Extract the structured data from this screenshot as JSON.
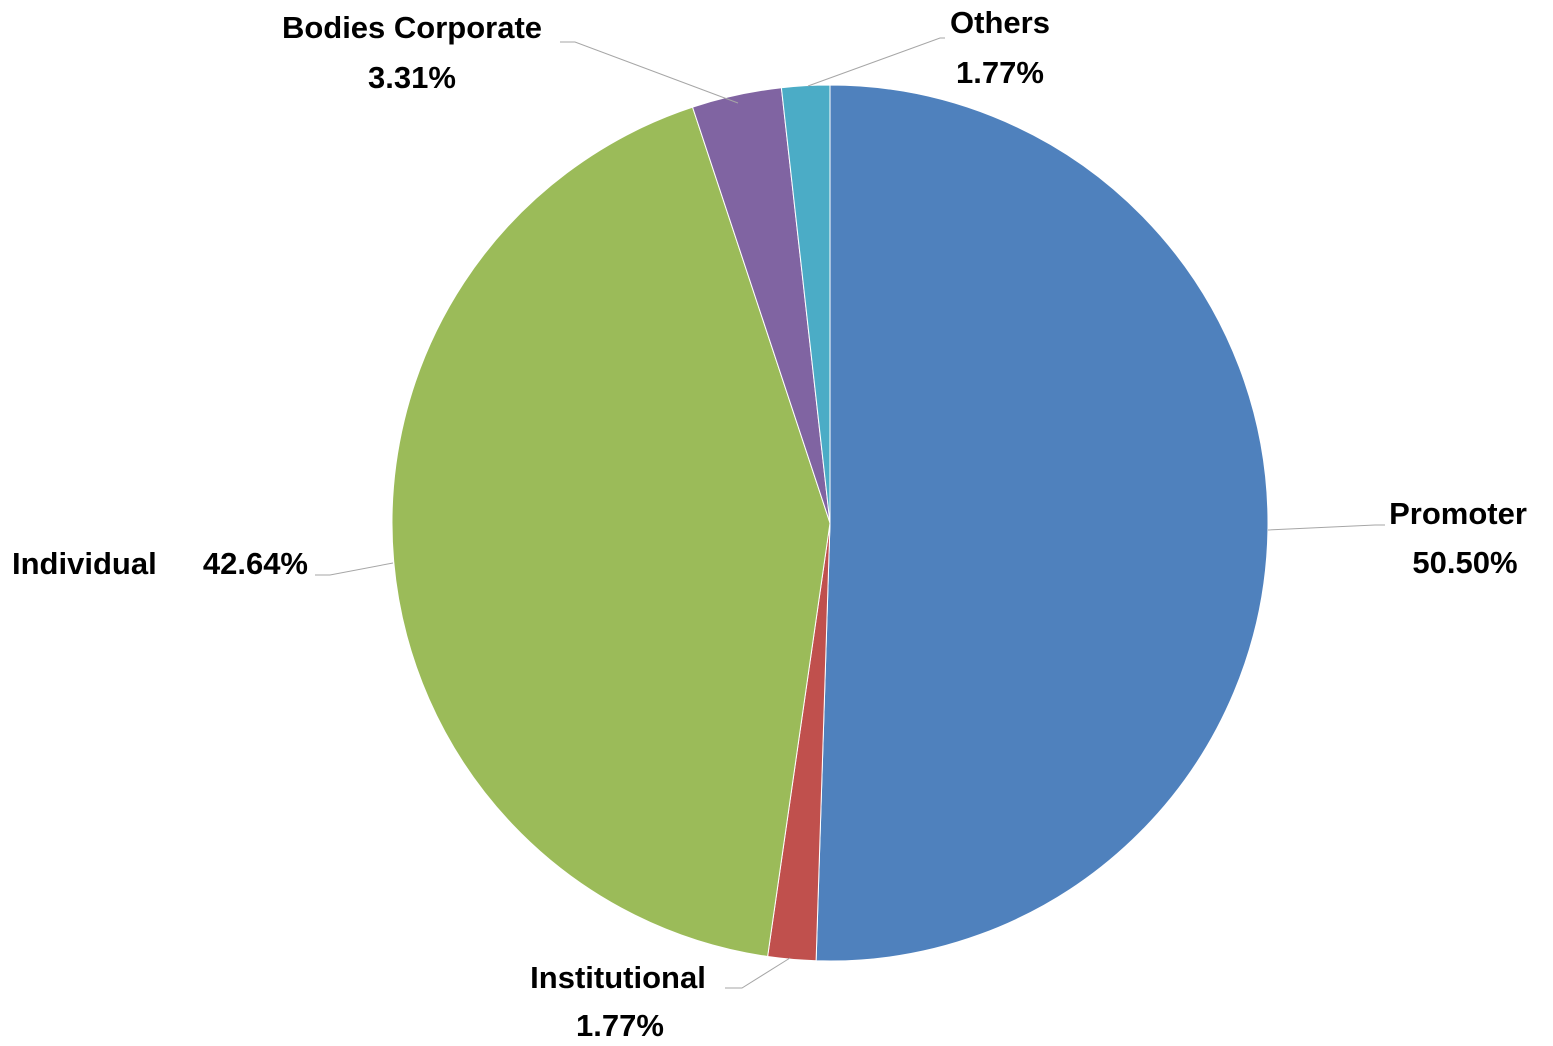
{
  "chart_data": {
    "type": "pie",
    "categories": [
      "Promoter",
      "Institutional",
      "Individual",
      "Bodies Corporate",
      "Others"
    ],
    "values": [
      50.5,
      1.77,
      42.64,
      3.31,
      1.77
    ],
    "value_labels": [
      "50.50%",
      "1.77%",
      "42.64%",
      "3.31%",
      "1.77%"
    ],
    "colors": [
      "#4f81bd",
      "#c0504d",
      "#9bbb59",
      "#8064a2",
      "#4bacc6"
    ]
  }
}
